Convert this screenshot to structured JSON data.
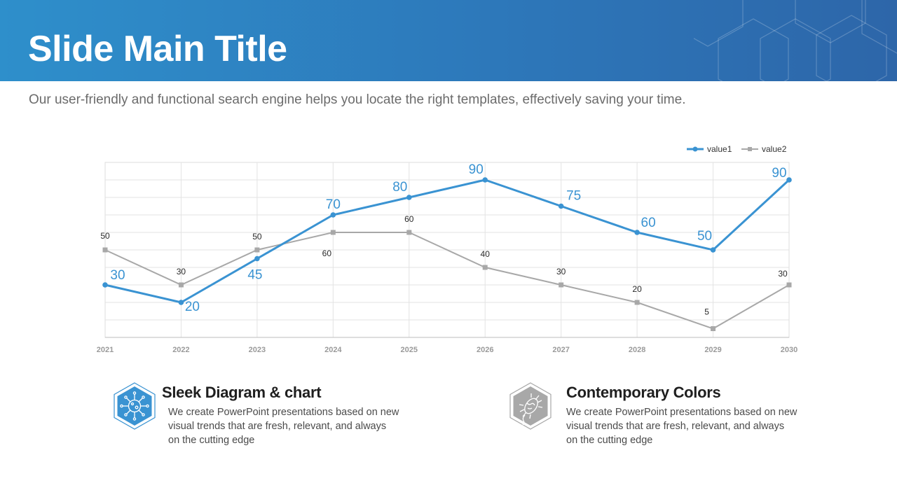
{
  "slide": {
    "title": "Slide Main Title",
    "subtitle": "Our user-friendly and functional search engine helps you locate the right templates, effectively saving your time."
  },
  "colors": {
    "header_start": "#2e8fcb",
    "header_end": "#2d66a9",
    "series1": "#3a93d2",
    "series2": "#a8a8a8",
    "grid": "#e3e3e3"
  },
  "chart_data": {
    "type": "line",
    "categories": [
      "2021",
      "2022",
      "2023",
      "2024",
      "2025",
      "2026",
      "2027",
      "2028",
      "2029",
      "2030"
    ],
    "series": [
      {
        "name": "value1",
        "values": [
          30,
          20,
          45,
          70,
          80,
          90,
          75,
          60,
          50,
          90
        ],
        "labels": [
          "30",
          "20",
          "45",
          "70",
          "80",
          "90",
          "75",
          "60",
          "50",
          "90"
        ],
        "marker": "circle",
        "color": "#3a93d2"
      },
      {
        "name": "value2",
        "values": [
          50,
          30,
          50,
          60,
          60,
          40,
          30,
          20,
          5,
          30
        ],
        "labels": [
          "50",
          "30",
          "50",
          "60",
          "60",
          "40",
          "30",
          "20",
          "5",
          "30"
        ],
        "marker": "square",
        "color": "#a8a8a8"
      }
    ],
    "ylim": [
      0,
      100
    ],
    "grid": true,
    "legend": "top-right",
    "title": "",
    "xlabel": "",
    "ylabel": ""
  },
  "features": [
    {
      "title": "Sleek Diagram & chart",
      "description": "We create PowerPoint presentations based on new visual trends that are fresh, relevant, and always on the cutting edge",
      "icon": "virus-network-icon",
      "color": "#3a93d2"
    },
    {
      "title": "Contemporary Colors",
      "description": "We create PowerPoint presentations based on new visual trends that are fresh, relevant, and always on the cutting edge",
      "icon": "bacteria-icon",
      "color": "#a8a8a8"
    }
  ]
}
